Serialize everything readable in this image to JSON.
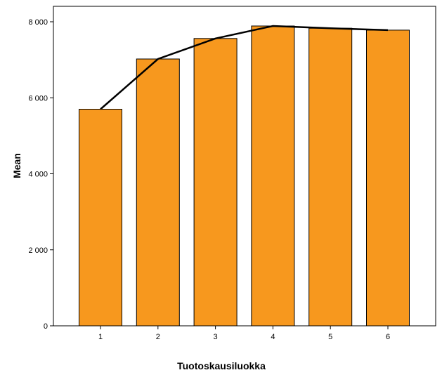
{
  "chart_data": {
    "type": "bar",
    "xlabel": "Tuotoskausiluokka",
    "ylabel": "Mean",
    "categories": [
      "1",
      "2",
      "3",
      "4",
      "5",
      "6"
    ],
    "values": [
      5700,
      7020,
      7560,
      7890,
      7830,
      7780
    ],
    "ylim": [
      0,
      8400
    ],
    "yticks": [
      0,
      2000,
      4000,
      6000,
      8000
    ],
    "ytick_labels": [
      "0",
      "2 000",
      "4 000",
      "6 000",
      "8 000"
    ],
    "overlay_line": true,
    "grid": false,
    "legend": "none",
    "colors": {
      "bar": "#F7981E",
      "bar_border": "#000000",
      "line": "#000000",
      "frame": "#000000"
    }
  }
}
